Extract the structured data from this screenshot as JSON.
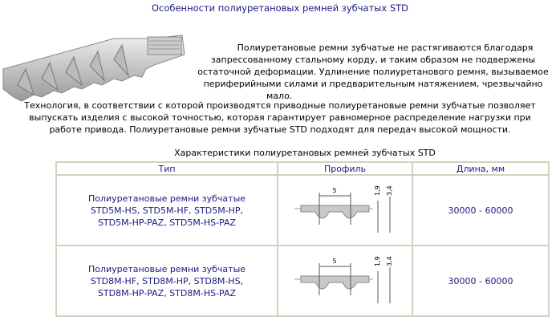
{
  "title": "Особенности полиуретановых ремней зубчатых STD",
  "intro": {
    "lines": [
      "Полиуретановые ремни зубчатые не растягиваются благодаря",
      "запрессованному стальному корду, и таким образом не подвержены",
      "остаточной деформации. Удлинение полиуретанового ремня, вызываемое",
      "периферийными силами и предварительным натяжением, чрезвычайно",
      "мало."
    ]
  },
  "technology": {
    "lines": [
      "Технология, в соответствии с которой производятся приводные полиуретановые ремни зубчатые позволяет",
      "выпускать изделия с высокой точностью, которая гарантирует равномерное распределение нагрузки при",
      "работе привода. Полиуретановые ремни зубчатые STD подходят для передач высокой мощности."
    ]
  },
  "table": {
    "caption": "Характеристики полиуретановых ремней зубчатых STD",
    "headers": [
      "Тип",
      "Профиль",
      "Длина, мм"
    ],
    "rows": [
      {
        "type_lines": [
          "Полиуретановые ремни зубчатые",
          "STD5M-HS, STD5M-HF, STD5M-HP,",
          "STD5M-HP-PAZ, STD5M-HS-PAZ"
        ],
        "profile": {
          "pitch": "5",
          "h1": "1,9",
          "h2": "3,4"
        },
        "length": "30000 - 60000"
      },
      {
        "type_lines": [
          "Полиуретановые ремни зубчатые",
          "STD8M-HF, STD8M-HP, STD8M-HS,",
          "STD8M-HP-PAZ, STD8M-HS-PAZ"
        ],
        "profile": {
          "pitch": "5",
          "h1": "1,9",
          "h2": "3,4"
        },
        "length": "30000 - 60000"
      }
    ]
  },
  "colors": {
    "link_text": "#1a1a80",
    "border": "#d4d0c0"
  }
}
